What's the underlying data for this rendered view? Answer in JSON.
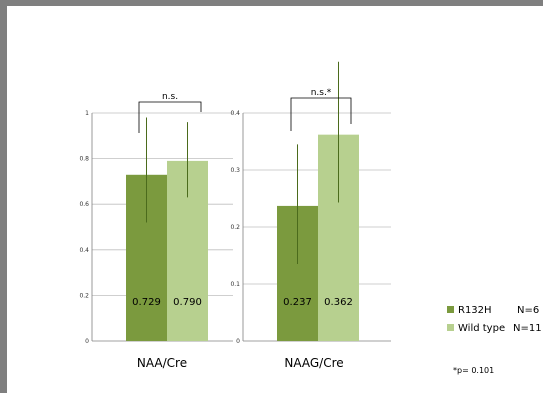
{
  "chart_data": [
    {
      "type": "bar",
      "categories": [
        "NAA/Cre"
      ],
      "xlabel": "NAA/Cre",
      "ylim": [
        0,
        1
      ],
      "yticks": [
        0,
        0.2,
        0.4,
        0.6,
        0.8,
        1
      ],
      "ytick_labels": [
        "0",
        "0.2",
        "0.4",
        "0.6",
        "0.8",
        "1"
      ],
      "series": [
        {
          "name": "R132H",
          "values": [
            0.729
          ],
          "label": "0.729",
          "err_low": [
            0.52
          ],
          "err_high": [
            0.98
          ]
        },
        {
          "name": "Wild type",
          "values": [
            0.79
          ],
          "label": "0.790",
          "err_low": [
            0.63
          ],
          "err_high": [
            0.96
          ]
        }
      ],
      "significance": {
        "label": "n.s.",
        "y": 1.02
      },
      "grid": true
    },
    {
      "type": "bar",
      "categories": [
        "NAAG/Cre"
      ],
      "xlabel": "NAAG/Cre",
      "ylim": [
        0,
        0.4
      ],
      "yticks": [
        0,
        0.1,
        0.2,
        0.3,
        0.4
      ],
      "ytick_labels": [
        "0",
        "0.1",
        "0.2",
        "0.3",
        "0.4"
      ],
      "series": [
        {
          "name": "R132H",
          "values": [
            0.237
          ],
          "label": "0.237",
          "err_low": [
            0.135
          ],
          "err_high": [
            0.345
          ]
        },
        {
          "name": "Wild type",
          "values": [
            0.362
          ],
          "label": "0.362",
          "err_low": [
            0.243
          ],
          "err_high": [
            0.49
          ]
        }
      ],
      "significance": {
        "label": "n.s.*",
        "y": 0.42
      },
      "grid": true
    }
  ],
  "legend": {
    "placement": "right",
    "items": [
      {
        "name": "R132H",
        "n": "N=6",
        "color": "#7b9a3e"
      },
      {
        "name": "Wild type",
        "n": "N=11",
        "color": "#b7d08f"
      }
    ]
  },
  "footnote": "*p= 0.101",
  "colors": {
    "r132h": "#7b9a3e",
    "wild_type": "#b7d08f",
    "error_bar": "#4b6b1c",
    "grid": "#bfbfbf"
  }
}
